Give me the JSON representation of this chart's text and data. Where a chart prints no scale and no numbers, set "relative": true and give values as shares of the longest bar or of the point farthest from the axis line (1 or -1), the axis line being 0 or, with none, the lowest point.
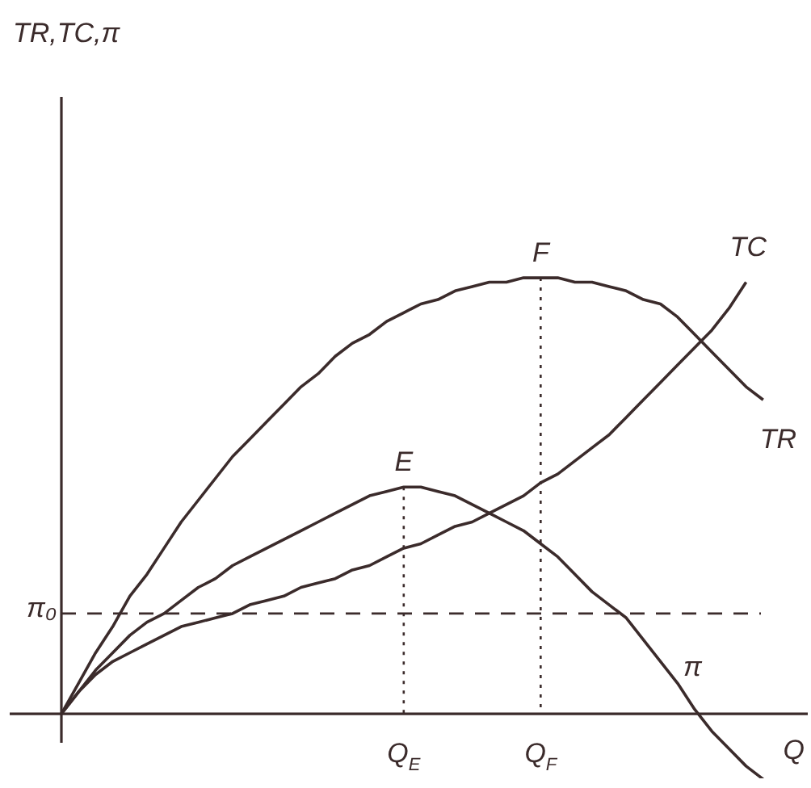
{
  "chart_data": {
    "type": "line",
    "relative": true,
    "xlabel": "Q",
    "categories": [
      null,
      null,
      null,
      null,
      null,
      null,
      null,
      null,
      null,
      null,
      null,
      null,
      null,
      null,
      null,
      null,
      null,
      null,
      null,
      null,
      "Q$_{E}$",
      null,
      null,
      null,
      null,
      null,
      null,
      null,
      "Q$_{F}$",
      null,
      null,
      null,
      null,
      null,
      null,
      null,
      null,
      null,
      null,
      null,
      null,
      null,
      null
    ],
    "series": [
      {
        "name": "TC",
        "color": "#3b2b2b",
        "values": [
          0,
          0.05,
          0.09,
          0.12,
          0.14,
          0.16,
          0.18,
          0.2,
          0.21,
          0.22,
          0.23,
          0.25,
          0.26,
          0.27,
          0.29,
          0.3,
          0.31,
          0.33,
          0.34,
          0.36,
          0.38,
          0.39,
          0.41,
          0.43,
          0.44,
          0.46,
          0.48,
          0.5,
          0.53,
          0.55,
          0.58,
          0.61,
          0.64,
          0.68,
          0.72,
          0.76,
          0.8,
          0.84,
          0.88,
          0.93,
          0.99,
          null,
          null
        ]
      },
      {
        "name": "TR",
        "color": "#3b2b2b",
        "values": [
          0,
          0.07,
          0.14,
          0.2,
          0.27,
          0.32,
          0.38,
          0.44,
          0.49,
          0.54,
          0.59,
          0.63,
          0.67,
          0.71,
          0.75,
          0.78,
          0.82,
          0.85,
          0.87,
          0.9,
          0.92,
          0.94,
          0.95,
          0.97,
          0.98,
          0.99,
          0.99,
          1,
          1,
          1,
          0.99,
          0.99,
          0.98,
          0.97,
          0.95,
          0.94,
          0.91,
          0.87,
          0.83,
          0.79,
          0.75,
          0.72,
          null
        ]
      },
      {
        "name": "π",
        "color": "#3b2b2b",
        "values": [
          0,
          0.05,
          0.1,
          0.14,
          0.18,
          0.21,
          0.23,
          0.26,
          0.29,
          0.31,
          0.34,
          0.36,
          0.38,
          0.4,
          0.42,
          0.44,
          0.46,
          0.48,
          0.5,
          0.51,
          0.52,
          0.52,
          0.51,
          0.5,
          0.48,
          0.46,
          0.44,
          0.42,
          0.39,
          0.36,
          0.32,
          0.28,
          0.25,
          0.22,
          0.17,
          0.12,
          0.07,
          0.01,
          -0.04,
          -0.08,
          -0.12,
          -0.15,
          null
        ]
      }
    ],
    "ref_lines": [
      {
        "axis": "y",
        "value": 0.23,
        "label": "π₀",
        "line_style": "dashed"
      }
    ],
    "annotations": [
      "TR,TC,π",
      {
        "text": "E",
        "x": "Q$_{E}$",
        "y": 0.52
      },
      {
        "text": "F",
        "x": "Q$_{F}$",
        "y": 1
      }
    ]
  }
}
